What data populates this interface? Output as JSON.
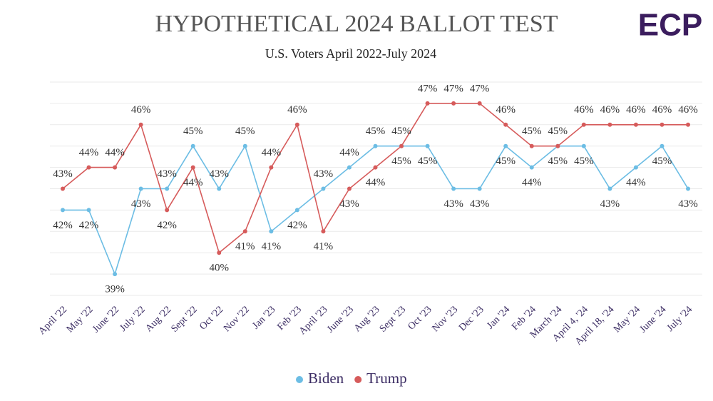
{
  "chart_data": {
    "type": "line",
    "title": "HYPOTHETICAL 2024 BALLOT TEST",
    "subtitle": "U.S. Voters April 2022-July 2024",
    "logo": "ECP",
    "categories": [
      "April '22",
      "May '22",
      "June '22",
      "July '22",
      "Aug '22",
      "Sept '22",
      "Oct '22",
      "Nov '22",
      "Jan '23",
      "Feb '23",
      "April '23",
      "June '23",
      "Aug '23",
      "Sept '23",
      "Oct '23",
      "Nov '23",
      "Dec '23",
      "Jan '24",
      "Feb '24",
      "March '24",
      "April 4, '24",
      "April 18, '24",
      "May '24",
      "June '24",
      "July '24"
    ],
    "series": [
      {
        "name": "Biden",
        "color": "#6cbde4",
        "values": [
          42,
          42,
          39,
          43,
          43,
          45,
          43,
          45,
          41,
          42,
          43,
          44,
          45,
          45,
          45,
          43,
          43,
          45,
          44,
          45,
          45,
          43,
          44,
          45,
          43
        ],
        "value_labels": [
          "42%",
          "42%",
          "39%",
          "43%",
          "43%",
          "45%",
          "43%",
          "45%",
          "41%",
          "42%",
          "43%",
          "44%",
          "45%",
          "45%",
          "45%",
          "43%",
          "43%",
          "45%",
          "44%",
          "45%",
          "45%",
          "43%",
          "44%",
          "45%",
          "43%"
        ]
      },
      {
        "name": "Trump",
        "color": "#d65b5b",
        "values": [
          43,
          44,
          44,
          46,
          42,
          44,
          40,
          41,
          44,
          46,
          41,
          43,
          44,
          45,
          47,
          47,
          47,
          46,
          45,
          45,
          46,
          46,
          46,
          46,
          46
        ],
        "value_labels": [
          "43%",
          "44%",
          "44%",
          "46%",
          "42%",
          "44%",
          "40%",
          "41%",
          "44%",
          "46%",
          "41%",
          "43%",
          "44%",
          "45%",
          "47%",
          "47%",
          "47%",
          "46%",
          "45%",
          "45%",
          "46%",
          "46%",
          "46%",
          "46%",
          "46%"
        ]
      }
    ],
    "ylim": [
      38,
      48
    ],
    "yticks": [
      38,
      39,
      40,
      41,
      42,
      43,
      44,
      45,
      46,
      47,
      48
    ],
    "grid": true
  }
}
